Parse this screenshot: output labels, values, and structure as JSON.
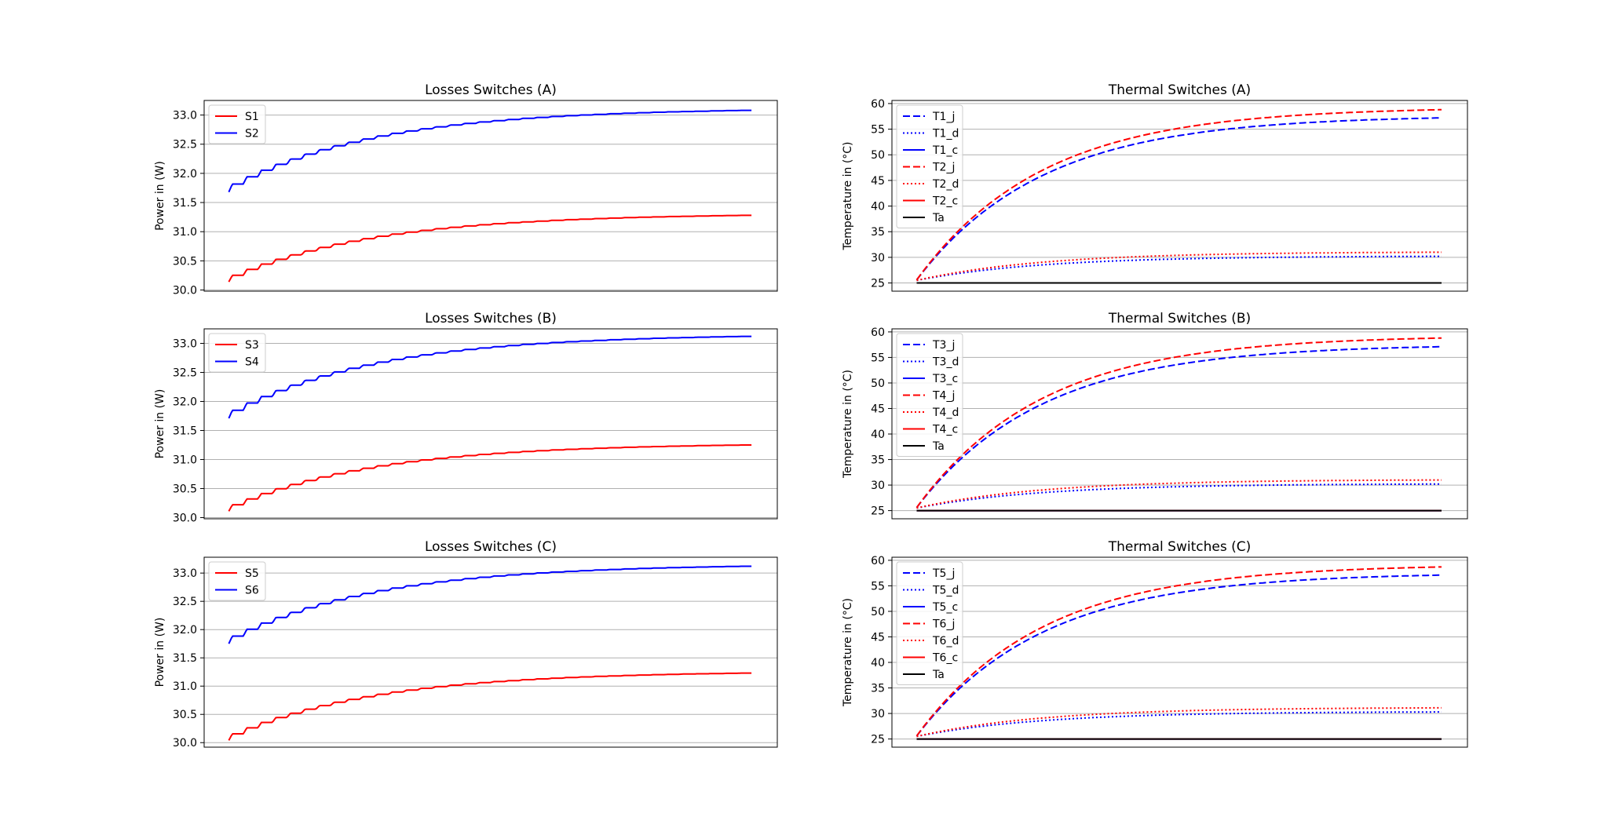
{
  "figure": {
    "background": "#ffffff"
  },
  "chart_data": [
    {
      "type": "line",
      "title": "Losses Switches (A)",
      "xlabel": "",
      "ylabel": "Power in (W)",
      "ylim": [
        29.98,
        33.25
      ],
      "yticks": [
        30.0,
        30.5,
        31.0,
        31.5,
        32.0,
        32.5,
        33.0
      ],
      "ytick_labels": [
        "30.0",
        "30.5",
        "31.0",
        "31.5",
        "32.0",
        "32.5",
        "33.0"
      ],
      "grid": true,
      "legend": "upper-left",
      "series": [
        {
          "name": "S1",
          "color": "#ff0000",
          "style": "solid",
          "start": 30.14,
          "end": 31.28,
          "shape": "step"
        },
        {
          "name": "S2",
          "color": "#0000ff",
          "style": "solid",
          "start": 31.68,
          "end": 33.08,
          "shape": "step"
        }
      ]
    },
    {
      "type": "line",
      "title": "Thermal Switches (A)",
      "xlabel": "",
      "ylabel": "Temperature in (°C)",
      "ylim": [
        23.4,
        60.6
      ],
      "yticks": [
        25,
        30,
        35,
        40,
        45,
        50,
        55,
        60
      ],
      "ytick_labels": [
        "25",
        "30",
        "35",
        "40",
        "45",
        "50",
        "55",
        "60"
      ],
      "grid": true,
      "legend": "upper-left",
      "series": [
        {
          "name": "T1_j",
          "color": "#0000ff",
          "style": "dashed",
          "start": 25.6,
          "end": 57.2,
          "shape": "exp"
        },
        {
          "name": "T1_d",
          "color": "#0000ff",
          "style": "dotted",
          "start": 25.5,
          "end": 30.2,
          "shape": "exp"
        },
        {
          "name": "T1_c",
          "color": "#0000ff",
          "style": "solid",
          "start": 25.0,
          "end": 25.0,
          "shape": "flat"
        },
        {
          "name": "T2_j",
          "color": "#ff0000",
          "style": "dashed",
          "start": 25.6,
          "end": 58.8,
          "shape": "exp"
        },
        {
          "name": "T2_d",
          "color": "#ff0000",
          "style": "dotted",
          "start": 25.5,
          "end": 31.0,
          "shape": "exp"
        },
        {
          "name": "T2_c",
          "color": "#ff0000",
          "style": "solid",
          "start": 25.0,
          "end": 25.0,
          "shape": "flat"
        },
        {
          "name": "Ta",
          "color": "#000000",
          "style": "solid",
          "start": 25.0,
          "end": 25.0,
          "shape": "flat"
        }
      ]
    },
    {
      "type": "line",
      "title": "Losses Switches (B)",
      "xlabel": "",
      "ylabel": "Power in (W)",
      "ylim": [
        29.98,
        33.25
      ],
      "yticks": [
        30.0,
        30.5,
        31.0,
        31.5,
        32.0,
        32.5,
        33.0
      ],
      "ytick_labels": [
        "30.0",
        "30.5",
        "31.0",
        "31.5",
        "32.0",
        "32.5",
        "33.0"
      ],
      "grid": true,
      "legend": "upper-left",
      "series": [
        {
          "name": "S3",
          "color": "#ff0000",
          "style": "solid",
          "start": 30.11,
          "end": 31.25,
          "shape": "step"
        },
        {
          "name": "S4",
          "color": "#0000ff",
          "style": "solid",
          "start": 31.71,
          "end": 33.12,
          "shape": "step"
        }
      ]
    },
    {
      "type": "line",
      "title": "Thermal Switches (B)",
      "xlabel": "",
      "ylabel": "Temperature in (°C)",
      "ylim": [
        23.4,
        60.6
      ],
      "yticks": [
        25,
        30,
        35,
        40,
        45,
        50,
        55,
        60
      ],
      "ytick_labels": [
        "25",
        "30",
        "35",
        "40",
        "45",
        "50",
        "55",
        "60"
      ],
      "grid": true,
      "legend": "upper-left",
      "series": [
        {
          "name": "T3_j",
          "color": "#0000ff",
          "style": "dashed",
          "start": 25.6,
          "end": 57.1,
          "shape": "exp"
        },
        {
          "name": "T3_d",
          "color": "#0000ff",
          "style": "dotted",
          "start": 25.5,
          "end": 30.2,
          "shape": "exp"
        },
        {
          "name": "T3_c",
          "color": "#0000ff",
          "style": "solid",
          "start": 25.0,
          "end": 25.0,
          "shape": "flat"
        },
        {
          "name": "T4_j",
          "color": "#ff0000",
          "style": "dashed",
          "start": 25.6,
          "end": 58.8,
          "shape": "exp"
        },
        {
          "name": "T4_d",
          "color": "#ff0000",
          "style": "dotted",
          "start": 25.5,
          "end": 31.0,
          "shape": "exp"
        },
        {
          "name": "T4_c",
          "color": "#ff0000",
          "style": "solid",
          "start": 25.0,
          "end": 25.0,
          "shape": "flat"
        },
        {
          "name": "Ta",
          "color": "#000000",
          "style": "solid",
          "start": 25.0,
          "end": 25.0,
          "shape": "flat"
        }
      ]
    },
    {
      "type": "line",
      "title": "Losses Switches (C)",
      "xlabel": "",
      "ylabel": "Power in (W)",
      "ylim": [
        29.92,
        33.28
      ],
      "yticks": [
        30.0,
        30.5,
        31.0,
        31.5,
        32.0,
        32.5,
        33.0
      ],
      "ytick_labels": [
        "30.0",
        "30.5",
        "31.0",
        "31.5",
        "32.0",
        "32.5",
        "33.0"
      ],
      "grid": true,
      "legend": "upper-left",
      "series": [
        {
          "name": "S5",
          "color": "#ff0000",
          "style": "solid",
          "start": 30.04,
          "end": 31.23,
          "shape": "step"
        },
        {
          "name": "S6",
          "color": "#0000ff",
          "style": "solid",
          "start": 31.75,
          "end": 33.12,
          "shape": "step"
        }
      ]
    },
    {
      "type": "line",
      "title": "Thermal Switches (C)",
      "xlabel": "",
      "ylabel": "Temperature in (°C)",
      "ylim": [
        23.4,
        60.6
      ],
      "yticks": [
        25,
        30,
        35,
        40,
        45,
        50,
        55,
        60
      ],
      "ytick_labels": [
        "25",
        "30",
        "35",
        "40",
        "45",
        "50",
        "55",
        "60"
      ],
      "grid": true,
      "legend": "upper-left",
      "series": [
        {
          "name": "T5_j",
          "color": "#0000ff",
          "style": "dashed",
          "start": 25.6,
          "end": 57.1,
          "shape": "exp"
        },
        {
          "name": "T5_d",
          "color": "#0000ff",
          "style": "dotted",
          "start": 25.5,
          "end": 30.3,
          "shape": "exp"
        },
        {
          "name": "T5_c",
          "color": "#0000ff",
          "style": "solid",
          "start": 25.0,
          "end": 25.0,
          "shape": "flat"
        },
        {
          "name": "T6_j",
          "color": "#ff0000",
          "style": "dashed",
          "start": 25.6,
          "end": 58.7,
          "shape": "exp"
        },
        {
          "name": "T6_d",
          "color": "#ff0000",
          "style": "dotted",
          "start": 25.5,
          "end": 31.1,
          "shape": "exp"
        },
        {
          "name": "T6_c",
          "color": "#ff0000",
          "style": "solid",
          "start": 25.0,
          "end": 25.0,
          "shape": "flat"
        },
        {
          "name": "Ta",
          "color": "#000000",
          "style": "solid",
          "start": 25.0,
          "end": 25.0,
          "shape": "flat"
        }
      ]
    }
  ]
}
